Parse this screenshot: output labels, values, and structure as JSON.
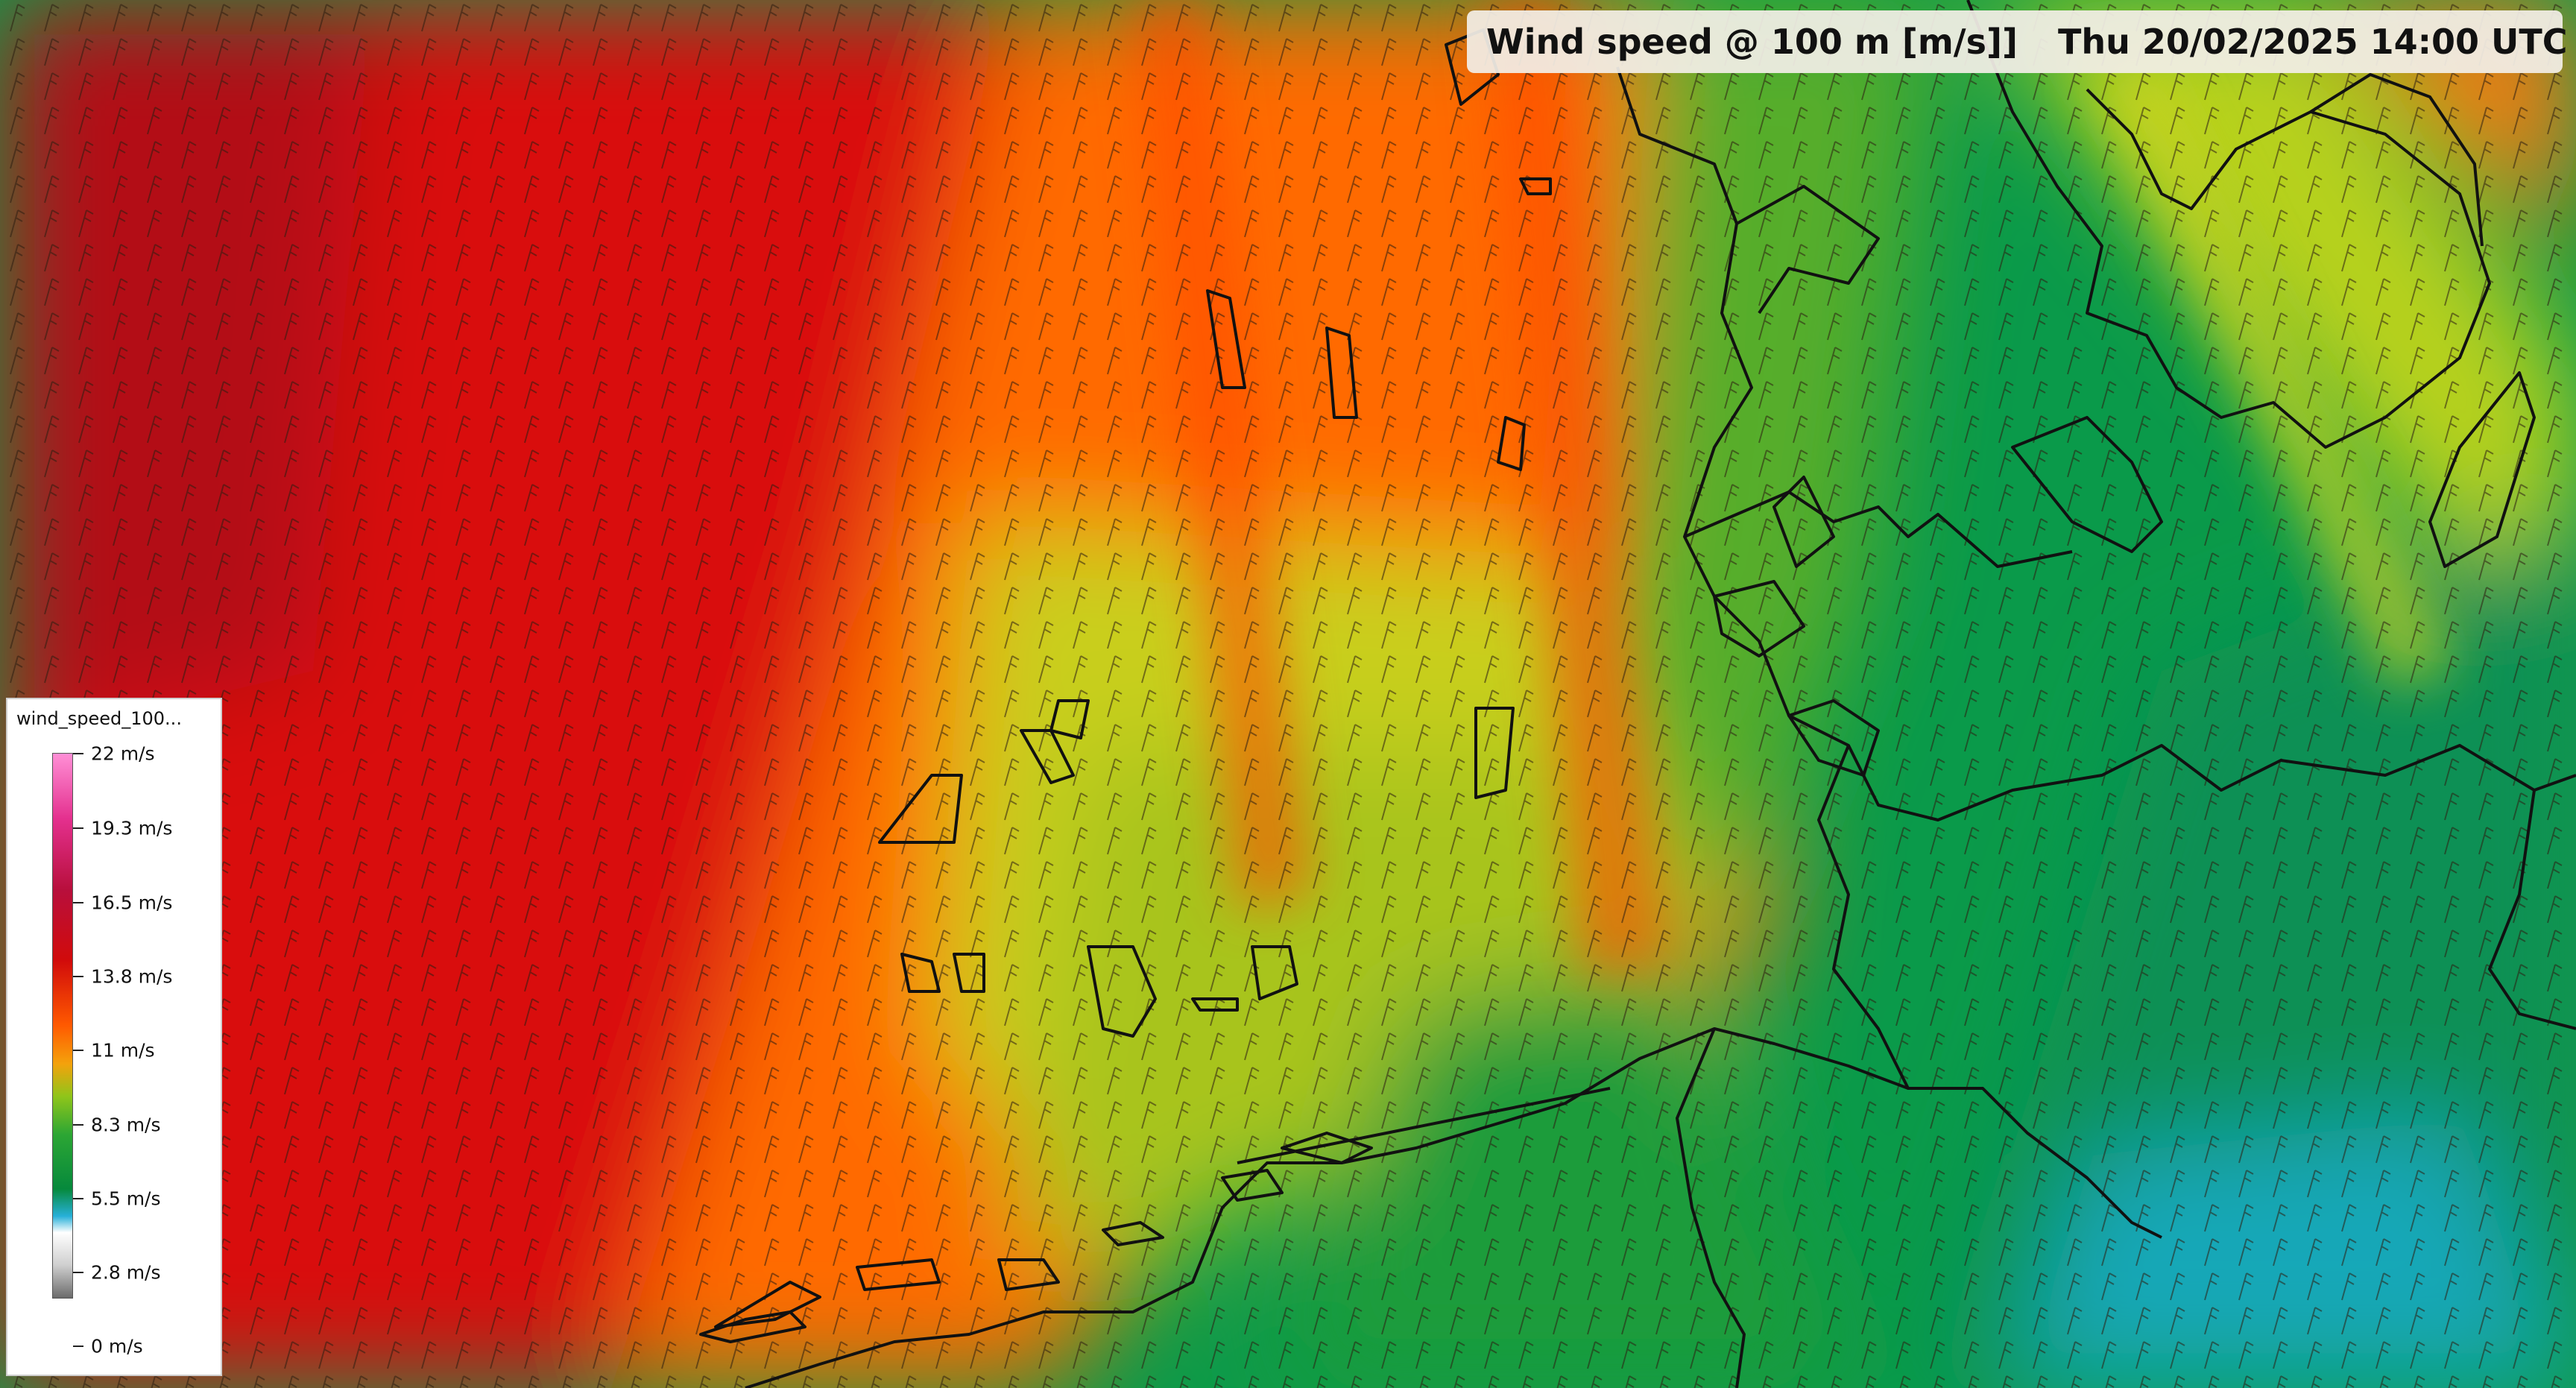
{
  "header": {
    "title": "Wind speed @ 100 m [m/s]]",
    "calendar_icon": "calendar-icon",
    "datetime": "Thu 20/02/2025 14:00 UTC"
  },
  "legend": {
    "title": "wind_speed_100...",
    "labels": [
      "22 m/s",
      "19.3 m/s",
      "16.5 m/s",
      "13.8 m/s",
      "11 m/s",
      "8.3 m/s",
      "5.5 m/s",
      "2.8 m/s",
      "0 m/s"
    ]
  },
  "colors": {
    "strong": "#d10b0b",
    "orange": "#ff5a00",
    "yellow": "#c8d21a",
    "green": "#0a9a4a",
    "coast": "#111111"
  },
  "map": {
    "barb_icon": "wind-barb-icon",
    "coastline": "coastline"
  }
}
